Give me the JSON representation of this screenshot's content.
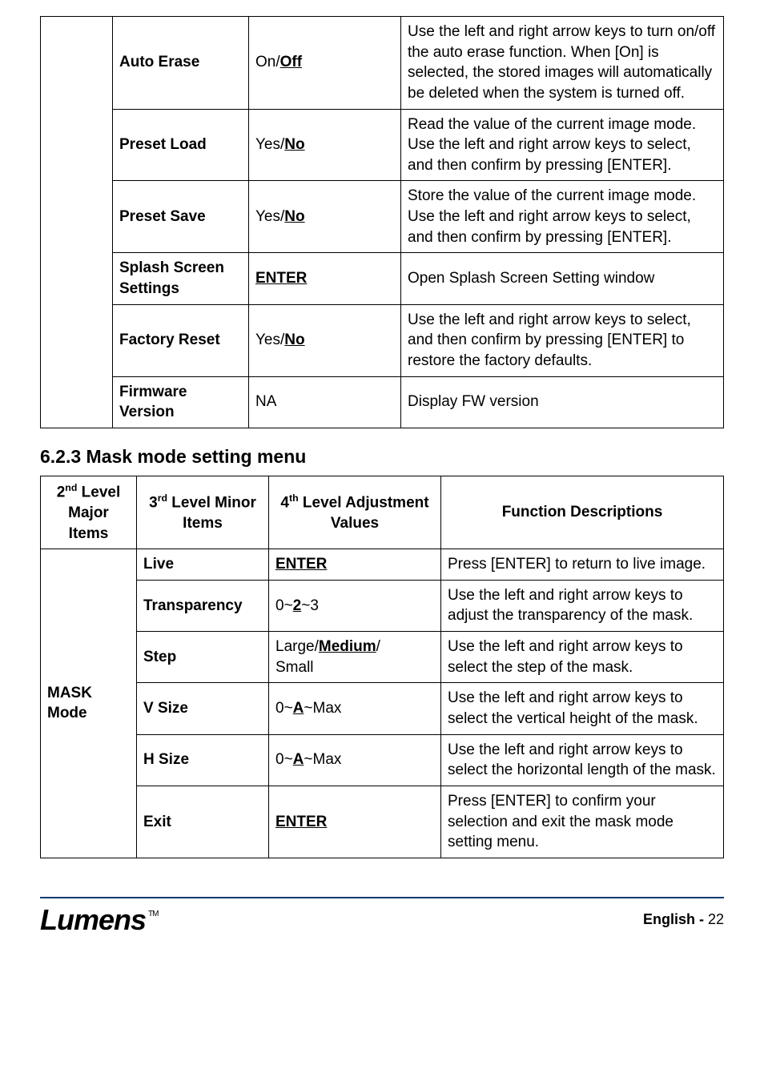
{
  "table1": {
    "rows": [
      {
        "name": "Auto Erase",
        "value_pre": "On/",
        "value_u": "Off",
        "value_post": "",
        "desc": "Use the left and right arrow keys to turn on/off the auto erase function. When [On] is selected, the stored images will automatically be deleted when the system is turned off."
      },
      {
        "name": "Preset Load",
        "value_pre": "Yes/",
        "value_u": "No",
        "value_post": "",
        "desc": "Read the value of the current image mode.\nUse the left and right arrow keys to select, and then confirm by pressing [ENTER]."
      },
      {
        "name": "Preset Save",
        "value_pre": "Yes/",
        "value_u": "No",
        "value_post": "",
        "desc": "Store the value of the current image mode.\nUse the left and right arrow keys to select, and then confirm by pressing [ENTER]."
      },
      {
        "name": "Splash Screen Settings",
        "value_pre": "",
        "value_u": "ENTER",
        "value_post": "",
        "value_bold_u": true,
        "desc": "Open Splash Screen Setting window"
      },
      {
        "name": "Factory Reset",
        "value_pre": "Yes/",
        "value_u": "No",
        "value_post": "",
        "desc": "Use the left and right arrow keys to select, and then confirm by pressing [ENTER] to restore the factory defaults."
      },
      {
        "name": "Firmware Version",
        "value_pre": "NA",
        "value_u": "",
        "value_post": "",
        "desc": "Display FW version"
      }
    ]
  },
  "section_heading": "6.2.3 Mask mode setting menu",
  "table2": {
    "headers": {
      "h1_pre": "2",
      "h1_sup": "nd",
      "h1_post": " Level Major Items",
      "h2_pre": "3",
      "h2_sup": "rd",
      "h2_post": " Level Minor Items",
      "h3_pre": "4",
      "h3_sup": "th",
      "h3_post": " Level Adjustment Values",
      "h4": "Function Descriptions"
    },
    "major": "MASK Mode",
    "rows": [
      {
        "name": "Live",
        "value_pre": "",
        "value_u": "ENTER",
        "value_post": "",
        "value_bold_u": true,
        "desc": "Press [ENTER] to return to live image."
      },
      {
        "name": "Transparency",
        "value_pre": "0~",
        "value_u": "2",
        "value_post": "~3",
        "desc": "Use the left and right arrow keys to adjust the transparency of the mask."
      },
      {
        "name": "Step",
        "value_pre": "Large/",
        "value_u": "Medium",
        "value_post": "/\nSmall",
        "desc": "Use the left and right arrow keys to select the step of the mask."
      },
      {
        "name": "V Size",
        "value_pre": "0~",
        "value_u": "A",
        "value_post": "~Max",
        "desc": "Use the left and right arrow keys to select the vertical height of the mask."
      },
      {
        "name": "H Size",
        "value_pre": "0~",
        "value_u": "A",
        "value_post": "~Max",
        "desc": "Use the left and right arrow keys to select the horizontal length of the mask."
      },
      {
        "name": "Exit",
        "value_pre": "",
        "value_u": "ENTER",
        "value_post": "",
        "value_bold_u": true,
        "desc": "Press [ENTER] to confirm your selection and exit the mask mode setting menu."
      }
    ]
  },
  "footer": {
    "logo_text": "Lumens",
    "tm": "TM",
    "lang": "English",
    "page_sep": " - ",
    "page_num": "22"
  },
  "colors": {
    "border": "#000000",
    "footer_rule": "#003a70",
    "text": "#000000",
    "bg": "#ffffff"
  }
}
